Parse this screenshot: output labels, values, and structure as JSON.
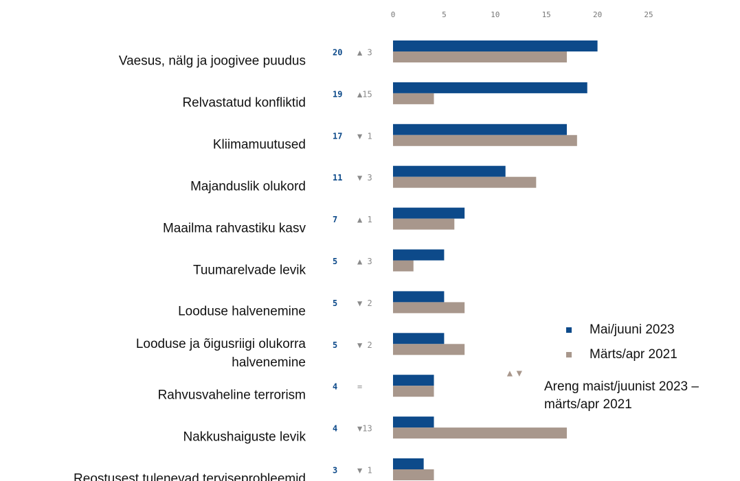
{
  "chart_data": {
    "type": "bar",
    "orientation": "horizontal",
    "categories": [
      "Vaesus, nälg ja joogivee puudus",
      "Relvastatud konfliktid",
      "Kliimamuutused",
      "Majanduslik olukord",
      "Maailma rahvastiku kasv",
      "Tuumarelvade levik",
      "Looduse halvenemine",
      "Looduse ja õigusriigi olukorra\nhalvenemine",
      "Rahvusvaheline terrorism",
      "Nakkushaiguste levik",
      "Reostusest tulenevad terviseprobleemid"
    ],
    "series": [
      {
        "name": "Mai/juuni 2023",
        "color": "#0d4a8a",
        "values": [
          20,
          19,
          17,
          11,
          7,
          5,
          5,
          5,
          4,
          4,
          3
        ]
      },
      {
        "name": "Märts/apr 2021",
        "color": "#a8978c",
        "values": [
          17,
          4,
          18,
          14,
          6,
          2,
          7,
          7,
          4,
          17,
          4
        ]
      }
    ],
    "change_labels": [
      "▲ 3",
      "▲15",
      "▼ 1",
      "▼ 3",
      "▲ 1",
      "▲ 3",
      "▼ 2",
      "▼ 2",
      "=",
      "▼13",
      "▼ 1"
    ],
    "change_legend_symbol": "▲▼",
    "change_legend": "Areng maist/juunist 2023 –\nmärts/apr 2021",
    "xlim": [
      0,
      25
    ],
    "xticks": [
      0,
      5,
      10,
      15,
      20,
      25
    ],
    "grid": false
  }
}
